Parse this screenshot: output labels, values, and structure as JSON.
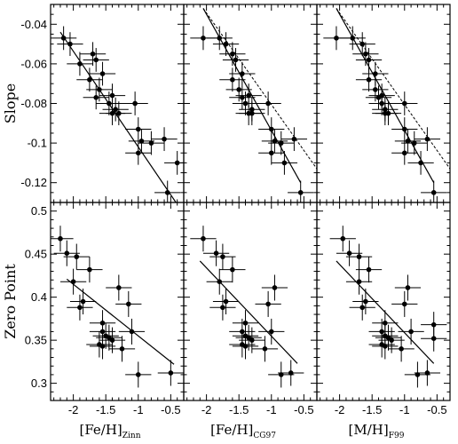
{
  "chart_data": {
    "type": "scatter",
    "rows": [
      {
        "ylabel": "Slope",
        "ylim": [
          -0.13,
          -0.03
        ],
        "yticks": [
          -0.04,
          -0.06,
          -0.08,
          -0.1,
          -0.12
        ],
        "yticklabels": [
          "-0.04",
          "-0.06",
          "-0.08",
          "-0.1",
          "-0.12"
        ]
      },
      {
        "ylabel": "Zero Point",
        "ylim": [
          0.28,
          0.51
        ],
        "yticks": [
          0.5,
          0.45,
          0.4,
          0.35,
          0.3
        ],
        "yticklabels": [
          "0.5",
          "0.45",
          "0.4",
          "0.35",
          "0.3"
        ]
      }
    ],
    "columns": [
      {
        "xlabel_main": "[Fe/H]",
        "xlabel_sub": "Zinn"
      },
      {
        "xlabel_main": "[Fe/H]",
        "xlabel_sub": "CG97"
      },
      {
        "xlabel_main": "[M/H]",
        "xlabel_sub": "F99"
      }
    ],
    "xlim": [
      -2.35,
      -0.3
    ],
    "xticks": [
      -2,
      -1.5,
      -1,
      -0.5
    ],
    "xticklabels": [
      "-2",
      "-1.5",
      "-1",
      "-0.5"
    ],
    "panels": [
      {
        "row": 0,
        "col": 0,
        "points": [
          [
            -2.15,
            -0.047
          ],
          [
            -2.05,
            -0.05
          ],
          [
            -1.9,
            -0.06
          ],
          [
            -1.7,
            -0.055
          ],
          [
            -1.65,
            -0.058
          ],
          [
            -1.55,
            -0.065
          ],
          [
            -1.75,
            -0.068
          ],
          [
            -1.6,
            -0.073
          ],
          [
            -1.65,
            -0.077
          ],
          [
            -1.4,
            -0.076
          ],
          [
            -1.45,
            -0.08
          ],
          [
            -1.35,
            -0.083
          ],
          [
            -1.4,
            -0.085
          ],
          [
            -1.3,
            -0.085
          ],
          [
            -1.05,
            -0.08
          ],
          [
            -1.0,
            -0.093
          ],
          [
            -0.95,
            -0.099
          ],
          [
            -0.8,
            -0.1
          ],
          [
            -1.0,
            -0.105
          ],
          [
            -0.6,
            -0.098
          ],
          [
            -0.4,
            -0.11
          ],
          [
            -0.55,
            -0.125
          ]
        ],
        "xerr": 0.2,
        "yerr": 0.006,
        "fit": {
          "x": [
            -2.2,
            -0.42
          ],
          "y": [
            -0.044,
            -0.13
          ],
          "dash": false
        }
      },
      {
        "row": 0,
        "col": 1,
        "points": [
          [
            -2.05,
            -0.047
          ],
          [
            -1.8,
            -0.047
          ],
          [
            -1.7,
            -0.05
          ],
          [
            -1.6,
            -0.055
          ],
          [
            -1.55,
            -0.058
          ],
          [
            -1.45,
            -0.065
          ],
          [
            -1.6,
            -0.068
          ],
          [
            -1.5,
            -0.073
          ],
          [
            -1.45,
            -0.077
          ],
          [
            -1.35,
            -0.076
          ],
          [
            -1.4,
            -0.08
          ],
          [
            -1.3,
            -0.083
          ],
          [
            -1.35,
            -0.085
          ],
          [
            -1.3,
            -0.085
          ],
          [
            -1.05,
            -0.08
          ],
          [
            -1.0,
            -0.093
          ],
          [
            -0.95,
            -0.099
          ],
          [
            -0.85,
            -0.1
          ],
          [
            -1.0,
            -0.105
          ],
          [
            -0.65,
            -0.098
          ],
          [
            -0.8,
            -0.11
          ],
          [
            -0.55,
            -0.125
          ]
        ],
        "xerr": 0.2,
        "yerr": 0.006,
        "fit": {
          "x": [
            -2.05,
            -0.55
          ],
          "y": [
            -0.032,
            -0.12
          ],
          "dash": false
        },
        "fit2": {
          "x": [
            -2.05,
            -0.3
          ],
          "y": [
            -0.032,
            -0.113
          ],
          "dash": true
        }
      },
      {
        "row": 0,
        "col": 2,
        "points": [
          [
            -2.05,
            -0.047
          ],
          [
            -1.8,
            -0.047
          ],
          [
            -1.65,
            -0.05
          ],
          [
            -1.6,
            -0.055
          ],
          [
            -1.55,
            -0.058
          ],
          [
            -1.45,
            -0.065
          ],
          [
            -1.55,
            -0.068
          ],
          [
            -1.45,
            -0.073
          ],
          [
            -1.4,
            -0.077
          ],
          [
            -1.35,
            -0.076
          ],
          [
            -1.35,
            -0.08
          ],
          [
            -1.3,
            -0.083
          ],
          [
            -1.3,
            -0.085
          ],
          [
            -1.25,
            -0.085
          ],
          [
            -1.0,
            -0.08
          ],
          [
            -1.0,
            -0.093
          ],
          [
            -0.95,
            -0.099
          ],
          [
            -0.85,
            -0.1
          ],
          [
            -1.0,
            -0.105
          ],
          [
            -0.65,
            -0.098
          ],
          [
            -0.75,
            -0.11
          ],
          [
            -0.55,
            -0.125
          ]
        ],
        "xerr": 0.2,
        "yerr": 0.006,
        "fit": {
          "x": [
            -2.05,
            -0.55
          ],
          "y": [
            -0.032,
            -0.12
          ],
          "dash": false
        },
        "fit2": {
          "x": [
            -2.05,
            -0.3
          ],
          "y": [
            -0.032,
            -0.113
          ],
          "dash": true
        }
      },
      {
        "row": 1,
        "col": 0,
        "points": [
          [
            -2.2,
            0.468
          ],
          [
            -2.1,
            0.451
          ],
          [
            -1.95,
            0.447
          ],
          [
            -1.75,
            0.432
          ],
          [
            -2.0,
            0.418
          ],
          [
            -1.85,
            0.395
          ],
          [
            -1.9,
            0.388
          ],
          [
            -1.55,
            0.37
          ],
          [
            -1.55,
            0.36
          ],
          [
            -1.5,
            0.355
          ],
          [
            -1.45,
            0.353
          ],
          [
            -1.4,
            0.35
          ],
          [
            -1.6,
            0.345
          ],
          [
            -1.55,
            0.343
          ],
          [
            -1.3,
            0.411
          ],
          [
            -1.15,
            0.392
          ],
          [
            -1.1,
            0.36
          ],
          [
            -1.25,
            0.34
          ],
          [
            -1.0,
            0.31
          ],
          [
            -0.5,
            0.312
          ]
        ],
        "xerr": 0.2,
        "yerr": 0.015,
        "fit": {
          "x": [
            -2.1,
            -0.45
          ],
          "y": [
            0.421,
            0.322
          ],
          "dash": false
        }
      },
      {
        "row": 1,
        "col": 1,
        "points": [
          [
            -2.05,
            0.468
          ],
          [
            -1.85,
            0.451
          ],
          [
            -1.75,
            0.447
          ],
          [
            -1.6,
            0.432
          ],
          [
            -1.8,
            0.418
          ],
          [
            -1.7,
            0.395
          ],
          [
            -1.75,
            0.388
          ],
          [
            -1.4,
            0.37
          ],
          [
            -1.45,
            0.36
          ],
          [
            -1.4,
            0.355
          ],
          [
            -1.35,
            0.353
          ],
          [
            -1.3,
            0.35
          ],
          [
            -1.45,
            0.345
          ],
          [
            -1.4,
            0.343
          ],
          [
            -0.95,
            0.411
          ],
          [
            -1.05,
            0.392
          ],
          [
            -1.0,
            0.36
          ],
          [
            -1.1,
            0.34
          ],
          [
            -0.85,
            0.31
          ],
          [
            -0.7,
            0.312
          ]
        ],
        "xerr": 0.2,
        "yerr": 0.015,
        "fit": {
          "x": [
            -2.1,
            -0.6
          ],
          "y": [
            0.442,
            0.323
          ],
          "dash": false
        }
      },
      {
        "row": 1,
        "col": 2,
        "points": [
          [
            -1.95,
            0.468
          ],
          [
            -1.85,
            0.451
          ],
          [
            -1.7,
            0.447
          ],
          [
            -1.55,
            0.432
          ],
          [
            -1.7,
            0.418
          ],
          [
            -1.6,
            0.395
          ],
          [
            -1.65,
            0.388
          ],
          [
            -1.3,
            0.37
          ],
          [
            -1.35,
            0.36
          ],
          [
            -1.3,
            0.355
          ],
          [
            -1.25,
            0.353
          ],
          [
            -1.2,
            0.35
          ],
          [
            -1.35,
            0.345
          ],
          [
            -1.3,
            0.343
          ],
          [
            -0.95,
            0.411
          ],
          [
            -1.0,
            0.392
          ],
          [
            -0.9,
            0.36
          ],
          [
            -1.05,
            0.34
          ],
          [
            -0.8,
            0.31
          ],
          [
            -0.65,
            0.312
          ],
          [
            -0.55,
            0.368
          ],
          [
            -0.55,
            0.352
          ]
        ],
        "xerr": 0.2,
        "yerr": 0.015,
        "fit": {
          "x": [
            -2.05,
            -0.55
          ],
          "y": [
            0.442,
            0.323
          ],
          "dash": false
        }
      }
    ]
  }
}
